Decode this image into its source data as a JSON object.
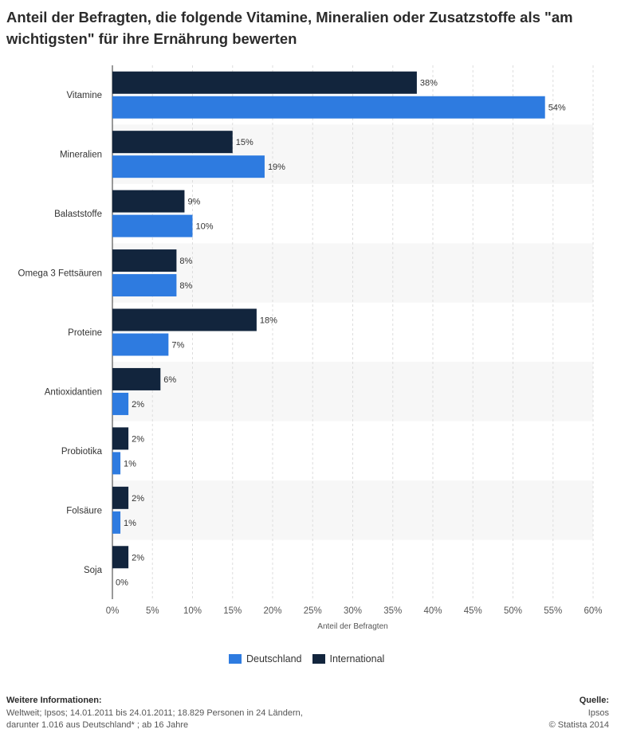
{
  "title": "Anteil der Befragten, die folgende Vitamine, Mineralien oder Zusatzstoffe als \"am wichtigsten\" für ihre Ernährung bewerten",
  "legend": {
    "deutschland": "Deutschland",
    "international": "International"
  },
  "footer": {
    "info_heading": "Weitere Informationen:",
    "info_line1": "Weltweit; Ipsos; 14.01.2011 bis 24.01.2011; 18.829 Personen in 24 Ländern,",
    "info_line2": "darunter 1.016 aus Deutschland* ; ab 16 Jahre",
    "source_heading": "Quelle:",
    "source_line1": "Ipsos",
    "source_line2": "© Statista 2014"
  },
  "colors": {
    "deutschland": "#2e7be0",
    "international": "#12253d",
    "band": "#f7f7f7"
  },
  "chart_data": {
    "type": "bar",
    "orientation": "horizontal",
    "categories": [
      "Vitamine",
      "Mineralien",
      "Balaststoffe",
      "Omega 3 Fettsäuren",
      "Proteine",
      "Antioxidantien",
      "Probiotika",
      "Folsäure",
      "Soja"
    ],
    "series": [
      {
        "name": "International",
        "values": [
          38,
          15,
          9,
          8,
          18,
          6,
          2,
          2,
          2
        ]
      },
      {
        "name": "Deutschland",
        "values": [
          54,
          19,
          10,
          8,
          7,
          2,
          1,
          1,
          0
        ]
      }
    ],
    "value_labels": {
      "International": [
        "38%",
        "15%",
        "9%",
        "8%",
        "18%",
        "6%",
        "2%",
        "2%",
        "2%"
      ],
      "Deutschland": [
        "54%",
        "19%",
        "10%",
        "8%",
        "7%",
        "2%",
        "1%",
        "1%",
        "0%"
      ]
    },
    "xlabel": "Anteil der Befragten",
    "xlim": [
      0,
      60
    ],
    "xticks": [
      "0%",
      "5%",
      "10%",
      "15%",
      "20%",
      "25%",
      "30%",
      "35%",
      "40%",
      "45%",
      "50%",
      "55%",
      "60%"
    ],
    "grid": true,
    "legend_position": "bottom-center"
  }
}
